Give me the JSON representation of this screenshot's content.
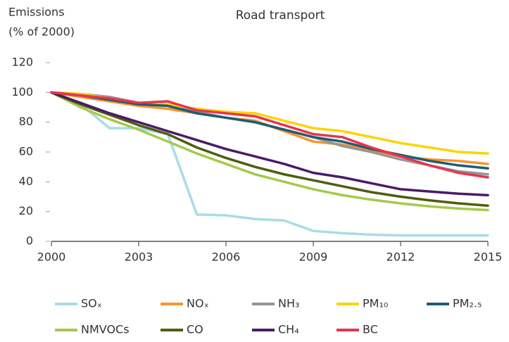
{
  "chart_data": {
    "type": "line",
    "title": "Road transport",
    "ylabel_lines": [
      "Emissions",
      "(% of 2000)"
    ],
    "x": [
      2000,
      2001,
      2002,
      2003,
      2004,
      2005,
      2006,
      2007,
      2008,
      2009,
      2010,
      2011,
      2012,
      2013,
      2014,
      2015
    ],
    "xlim": [
      2000,
      2015
    ],
    "xticks": [
      2000,
      2003,
      2006,
      2009,
      2012,
      2015
    ],
    "ylim": [
      0,
      120
    ],
    "yticks": [
      0,
      20,
      40,
      60,
      80,
      100,
      120
    ],
    "grid": false,
    "series": [
      {
        "name": "SOₓ",
        "color": "#a8dce6",
        "values": [
          100,
          92,
          76,
          76,
          72,
          18,
          17.5,
          15,
          14,
          7,
          5.5,
          4.5,
          4,
          4,
          4,
          4
        ]
      },
      {
        "name": "NOₓ",
        "color": "#f7942d",
        "values": [
          100,
          97,
          94,
          91,
          89,
          86,
          83,
          81,
          74,
          67,
          65,
          61,
          57,
          55,
          54,
          52
        ]
      },
      {
        "name": "NH₃",
        "color": "#969696",
        "values": [
          100,
          99,
          97,
          93,
          91,
          87,
          83,
          80,
          75,
          70,
          64,
          60,
          55,
          51,
          47,
          45
        ]
      },
      {
        "name": "PM₁₀",
        "color": "#fcd400",
        "values": [
          100,
          99,
          96,
          93,
          92,
          89,
          87,
          86,
          81,
          76,
          74,
          70,
          66,
          63,
          60,
          59
        ]
      },
      {
        "name": "PM₂.₅",
        "color": "#1d5d73",
        "values": [
          100,
          98,
          95,
          92,
          91,
          86,
          83,
          80,
          75,
          70,
          67,
          62,
          58,
          54,
          51,
          49
        ]
      },
      {
        "name": "NMVOCs",
        "color": "#a5c94a",
        "values": [
          100,
          90,
          82,
          75,
          67,
          59,
          52,
          45,
          40,
          35,
          31,
          28,
          25.5,
          23.5,
          22,
          21
        ]
      },
      {
        "name": "CO",
        "color": "#4e5e10",
        "values": [
          100,
          92,
          85,
          78,
          72,
          63,
          56,
          50,
          45,
          41,
          37,
          33,
          30,
          27.5,
          25.5,
          24
        ]
      },
      {
        "name": "CH₄",
        "color": "#4b1a68",
        "values": [
          100,
          93,
          86,
          80,
          74,
          68,
          62,
          57,
          52,
          46,
          43,
          39,
          35,
          33.5,
          32,
          31
        ]
      },
      {
        "name": "BC",
        "color": "#e8344e",
        "values": [
          100,
          98,
          96,
          93,
          94,
          88,
          86,
          84,
          78,
          72,
          70,
          63,
          57,
          51,
          46,
          43
        ]
      }
    ]
  }
}
